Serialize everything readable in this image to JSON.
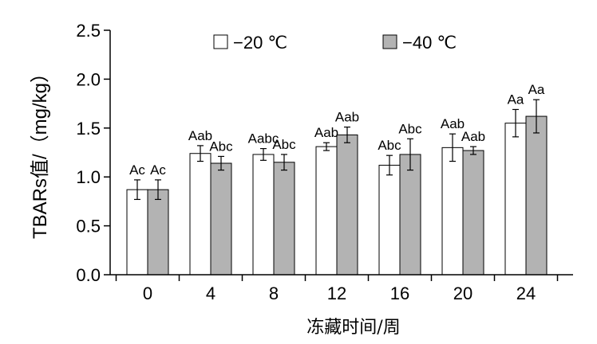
{
  "chart_data": {
    "type": "bar",
    "xlabel": "冻藏时间/周",
    "ylabel": "TBARs值/（mg/kg）",
    "ylim": [
      0.0,
      2.5
    ],
    "yticks": [
      "0.0",
      "0.5",
      "1.0",
      "1.5",
      "2.0",
      "2.5"
    ],
    "categories": [
      "0",
      "4",
      "8",
      "12",
      "16",
      "20",
      "24"
    ],
    "legend_position": "top-center",
    "series": [
      {
        "name": "−20 ℃",
        "color": "#ffffff",
        "values": [
          0.87,
          1.24,
          1.23,
          1.31,
          1.12,
          1.3,
          1.55
        ],
        "errors": [
          0.1,
          0.08,
          0.06,
          0.04,
          0.1,
          0.14,
          0.14
        ],
        "labels": [
          "Ac",
          "Aab",
          "Aabc",
          "Aab",
          "Abc",
          "Aab",
          "Aa"
        ]
      },
      {
        "name": "−40 ℃",
        "color": "#b3b3b3",
        "values": [
          0.87,
          1.14,
          1.15,
          1.43,
          1.23,
          1.27,
          1.62
        ],
        "errors": [
          0.1,
          0.07,
          0.08,
          0.08,
          0.16,
          0.04,
          0.17
        ],
        "labels": [
          "Ac",
          "Abc",
          "Abc",
          "Aab",
          "Abc",
          "Aab",
          "Aa"
        ]
      }
    ]
  }
}
